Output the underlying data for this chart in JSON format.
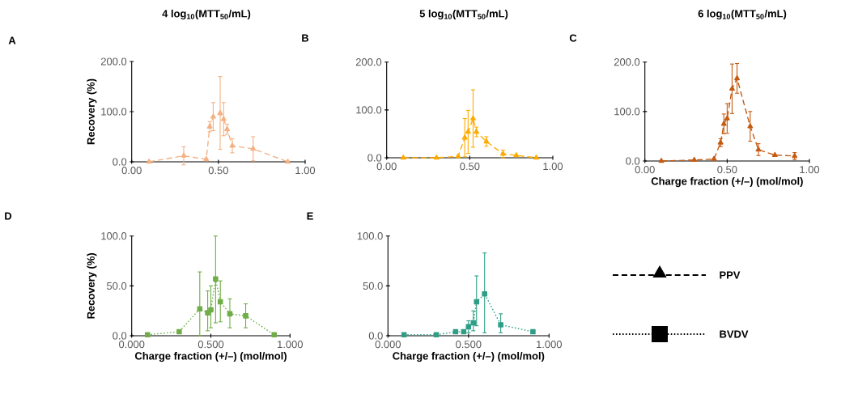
{
  "chart_data": [
    {
      "type": "line",
      "title": "4 log$_{10}$(MTT$_{50}$/mL)",
      "ylabel": "Recovery (%)",
      "annotations": [
        "A"
      ],
      "marker": "triangle",
      "line_style": "dashed",
      "x": [
        0.1,
        0.3,
        0.43,
        0.45,
        0.47,
        0.51,
        0.53,
        0.55,
        0.58,
        0.7,
        0.9
      ],
      "series": [
        {
          "color": "#f4b183",
          "values": [
            0,
            12,
            5,
            70,
            90,
            97,
            85,
            65,
            32,
            26,
            0
          ],
          "errors": [
            null,
            18,
            null,
            10,
            28,
            [
              25,
              170
            ],
            33,
            10,
            14,
            24,
            null
          ]
        }
      ],
      "xlim": [
        0,
        1
      ],
      "ylim": [
        0,
        200
      ],
      "xticks": [
        {
          "value": 0,
          "label": "0.00"
        },
        {
          "value": 0.5,
          "label": "0.50"
        },
        {
          "value": 1,
          "label": "1.00"
        }
      ],
      "yticks": [
        {
          "value": 0,
          "label": "0.0"
        },
        {
          "value": 100,
          "label": "100.0"
        },
        {
          "value": 200,
          "label": "200.0"
        }
      ]
    },
    {
      "type": "line",
      "title": "5 log$_{10}$(MTT$_{50}$/mL)",
      "annotations": [
        "B"
      ],
      "marker": "triangle",
      "line_style": "dashed",
      "x": [
        0.1,
        0.3,
        0.43,
        0.47,
        0.49,
        0.52,
        0.54,
        0.6,
        0.7,
        0.78,
        0.9
      ],
      "series": [
        {
          "color": "#ffaa00",
          "values": [
            0,
            0,
            3,
            42,
            54,
            82,
            54,
            34,
            8,
            5,
            0
          ],
          "errors": [
            null,
            null,
            null,
            40,
            45,
            60,
            10,
            10,
            8,
            null,
            null
          ]
        }
      ],
      "xlim": [
        0,
        1
      ],
      "ylim": [
        0,
        200
      ],
      "xticks": [
        {
          "value": 0,
          "label": "0.00"
        },
        {
          "value": 0.5,
          "label": "0.50"
        },
        {
          "value": 1,
          "label": "1.00"
        }
      ],
      "yticks": [
        {
          "value": 0,
          "label": "0.0"
        },
        {
          "value": 100,
          "label": "100.0"
        },
        {
          "value": 200,
          "label": "200.0"
        }
      ]
    },
    {
      "type": "line",
      "title": "6 log$_{10}$(MTT$_{50}$/mL)",
      "xlabel": "Charge fraction (+/–) (mol/mol)",
      "annotations": [
        "C"
      ],
      "marker": "triangle",
      "line_style": "dashed",
      "x": [
        0.1,
        0.3,
        0.42,
        0.46,
        0.48,
        0.5,
        0.53,
        0.56,
        0.64,
        0.69,
        0.79,
        0.91
      ],
      "series": [
        {
          "color": "#c55a11",
          "values": [
            0,
            2,
            4,
            37,
            75,
            86,
            146,
            167,
            70,
            23,
            12,
            10
          ],
          "errors": [
            null,
            null,
            null,
            8,
            20,
            30,
            50,
            30,
            30,
            12,
            null,
            7
          ]
        }
      ],
      "xlim": [
        0,
        1
      ],
      "ylim": [
        0,
        200
      ],
      "xticks": [
        {
          "value": 0,
          "label": "0.00"
        },
        {
          "value": 0.5,
          "label": "0.50"
        },
        {
          "value": 1,
          "label": "1.00"
        }
      ],
      "yticks": [
        {
          "value": 0,
          "label": "0.0"
        },
        {
          "value": 100,
          "label": "100.0"
        },
        {
          "value": 200,
          "label": "200.0"
        }
      ]
    },
    {
      "type": "line",
      "xlabel": "Charge fraction (+/–) (mol/mol)",
      "ylabel": "Recovery (%)",
      "annotations": [
        "D"
      ],
      "marker": "square",
      "line_style": "dotted",
      "x": [
        0.1,
        0.3,
        0.43,
        0.48,
        0.5,
        0.53,
        0.56,
        0.62,
        0.72,
        0.9
      ],
      "series": [
        {
          "color": "#70ad47",
          "values": [
            1,
            4,
            27,
            23,
            26,
            57,
            34,
            22,
            20,
            1
          ],
          "errors": [
            null,
            null,
            [
              0,
              64
            ],
            [
              5,
              45
            ],
            [
              8,
              50
            ],
            [
              13,
              100
            ],
            [
              14,
              55
            ],
            [
              8,
              37
            ],
            [
              8,
              32
            ],
            null
          ]
        }
      ],
      "xlim": [
        0,
        1
      ],
      "ylim": [
        0,
        100
      ],
      "xticks": [
        {
          "value": 0,
          "label": "0.000"
        },
        {
          "value": 0.5,
          "label": "0.500"
        },
        {
          "value": 1,
          "label": "1.000"
        }
      ],
      "yticks": [
        {
          "value": 0,
          "label": "0.0"
        },
        {
          "value": 50,
          "label": "50.0"
        },
        {
          "value": 100,
          "label": "100.0"
        }
      ]
    },
    {
      "type": "line",
      "xlabel": "Charge fraction (+/–) (mol/mol)",
      "annotations": [
        "E"
      ],
      "marker": "square",
      "line_style": "dotted",
      "x": [
        0.1,
        0.3,
        0.42,
        0.47,
        0.5,
        0.53,
        0.55,
        0.6,
        0.7,
        0.9
      ],
      "series": [
        {
          "color": "#2e9e86",
          "values": [
            1,
            1,
            4,
            4,
            9,
            13,
            34,
            42,
            11,
            4
          ],
          "errors": [
            null,
            null,
            null,
            null,
            [
              3,
              15
            ],
            [
              5,
              25
            ],
            [
              10,
              60
            ],
            [
              3,
              83
            ],
            [
              3,
              22
            ],
            null
          ]
        }
      ],
      "xlim": [
        0,
        1
      ],
      "ylim": [
        0,
        100
      ],
      "xticks": [
        {
          "value": 0,
          "label": "0.000"
        },
        {
          "value": 0.5,
          "label": "0.500"
        },
        {
          "value": 1,
          "label": "1.000"
        }
      ],
      "yticks": [
        {
          "value": 0,
          "label": "0.0"
        },
        {
          "value": 50,
          "label": "50.0"
        },
        {
          "value": 100,
          "label": "100.0"
        }
      ]
    },
    {
      "type": "other",
      "annotations": [
        "PPV",
        "BVDV"
      ]
    }
  ]
}
